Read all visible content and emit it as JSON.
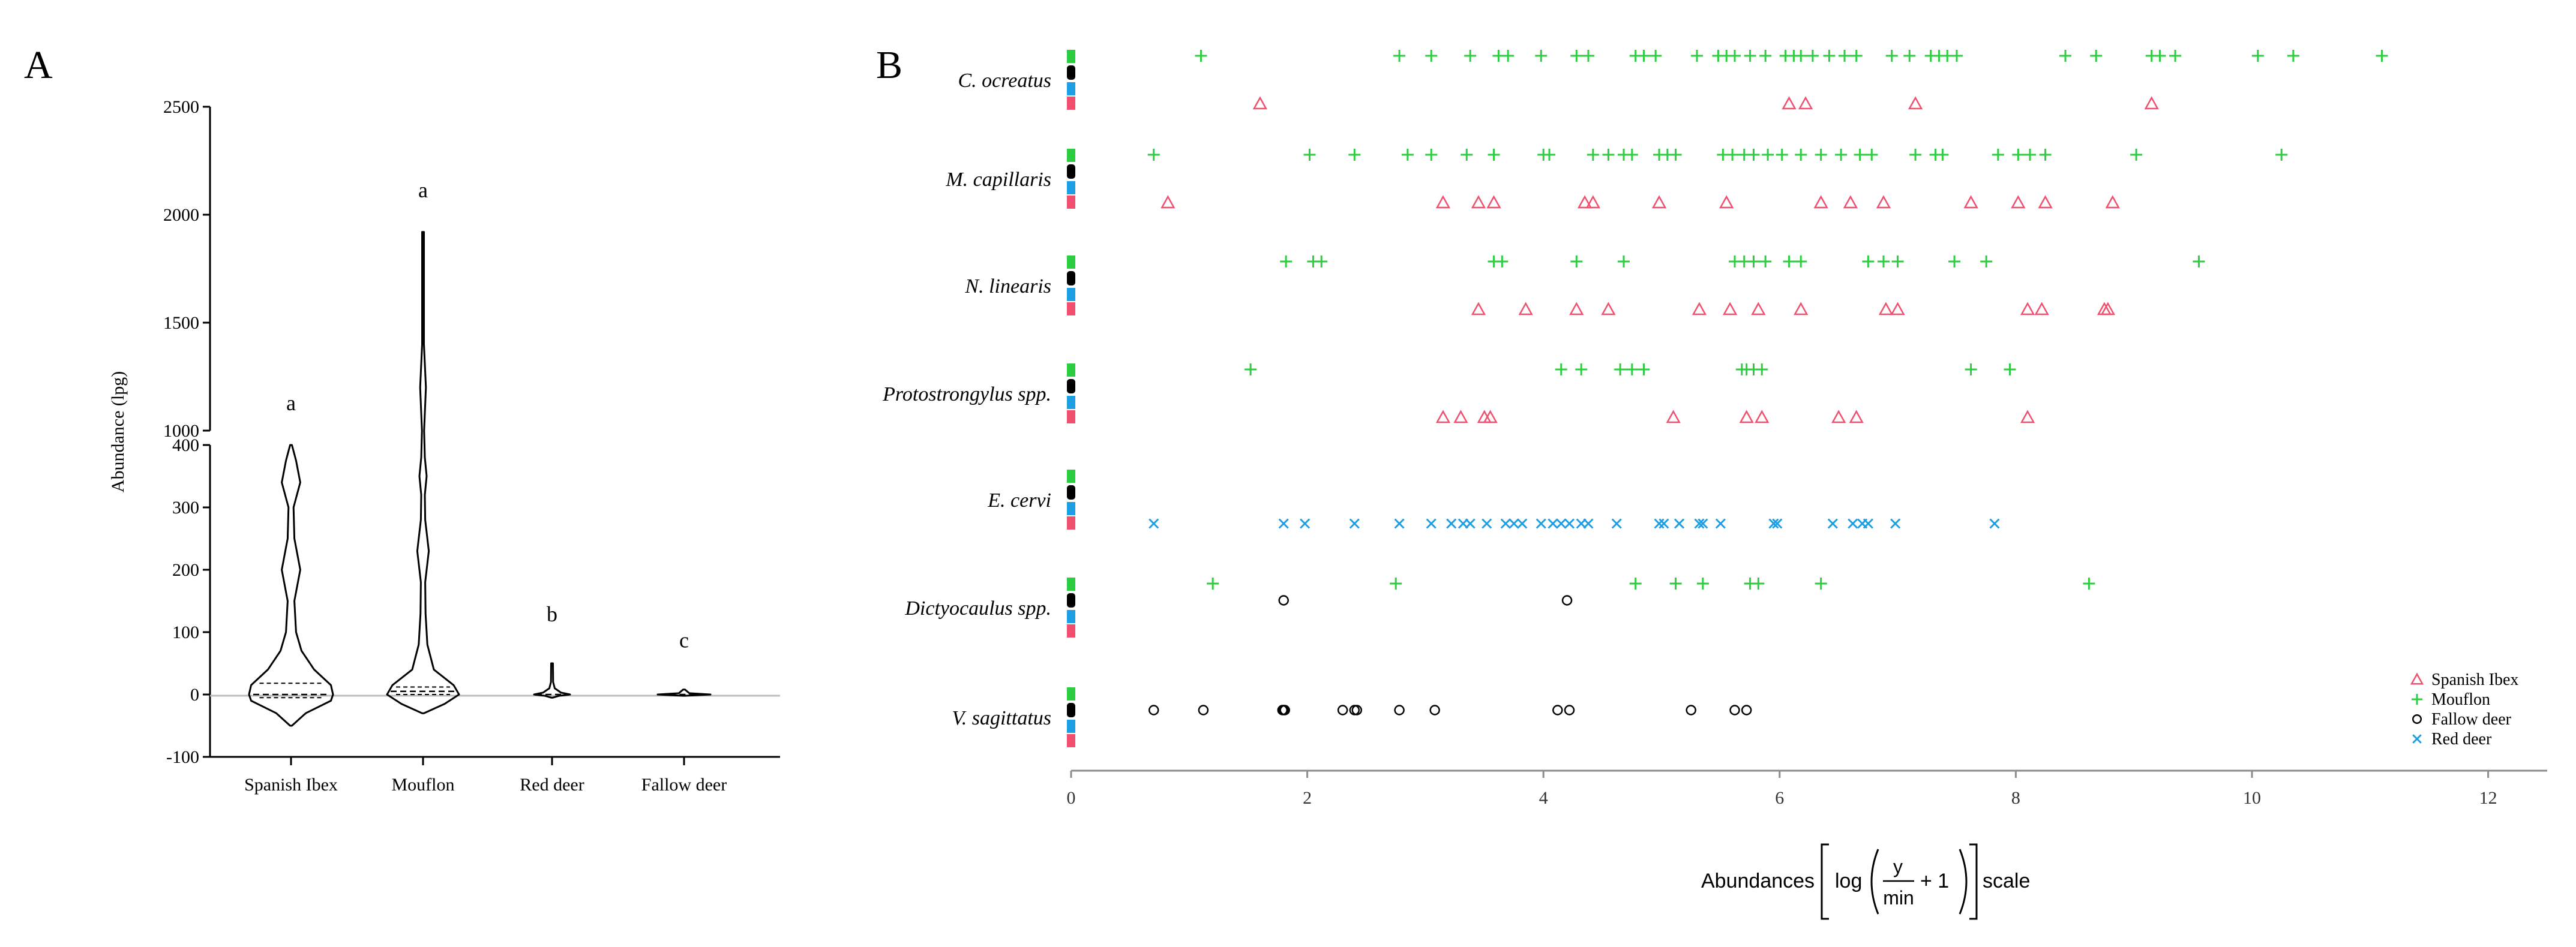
{
  "panel_a_label": "A",
  "panel_b_label": "B",
  "chart_data": [
    {
      "type": "violin",
      "panel": "A",
      "ylabel": "Abundance (lpg)",
      "y_axis": "broken",
      "lower_segment": {
        "ylim": [
          -100,
          400
        ],
        "ticks": [
          -100,
          0,
          100,
          200,
          300,
          400
        ]
      },
      "upper_segment": {
        "ylim": [
          1000,
          2500
        ],
        "ticks": [
          1000,
          1500,
          2000,
          2500
        ]
      },
      "categories": [
        "Spanish Ibex",
        "Mouflon",
        "Red deer",
        "Fallow deer"
      ],
      "significance_letters": [
        "a",
        "a",
        "b",
        "c"
      ],
      "series": [
        {
          "name": "Spanish Ibex",
          "min": -50,
          "max": 400,
          "median": 0,
          "q1": -5,
          "q3": 18,
          "density": [
            [
              -50,
              0.0
            ],
            [
              -30,
              0.35
            ],
            [
              -10,
              0.95
            ],
            [
              0,
              1.0
            ],
            [
              15,
              0.95
            ],
            [
              40,
              0.55
            ],
            [
              70,
              0.25
            ],
            [
              100,
              0.12
            ],
            [
              150,
              0.08
            ],
            [
              200,
              0.22
            ],
            [
              250,
              0.08
            ],
            [
              300,
              0.06
            ],
            [
              340,
              0.22
            ],
            [
              375,
              0.12
            ],
            [
              400,
              0.0
            ]
          ]
        },
        {
          "name": "Mouflon",
          "min": -30,
          "max": 1920,
          "median": 5,
          "q1": 0,
          "q3": 12,
          "density": [
            [
              -30,
              0.0
            ],
            [
              -15,
              0.6
            ],
            [
              0,
              1.0
            ],
            [
              15,
              0.85
            ],
            [
              40,
              0.3
            ],
            [
              80,
              0.12
            ],
            [
              130,
              0.07
            ],
            [
              180,
              0.06
            ],
            [
              230,
              0.16
            ],
            [
              280,
              0.06
            ],
            [
              320,
              0.05
            ],
            [
              350,
              0.1
            ],
            [
              380,
              0.05
            ],
            [
              1000,
              0.03
            ],
            [
              1200,
              0.08
            ],
            [
              1400,
              0.02
            ],
            [
              1920,
              0.0
            ]
          ]
        },
        {
          "name": "Red deer",
          "min": -5,
          "max": 50,
          "median": 0,
          "density": [
            [
              -5,
              0.0
            ],
            [
              -2,
              0.4
            ],
            [
              0,
              1.0
            ],
            [
              3,
              0.5
            ],
            [
              10,
              0.15
            ],
            [
              20,
              0.06
            ],
            [
              50,
              0.0
            ]
          ]
        },
        {
          "name": "Fallow deer",
          "min": -2,
          "max": 8,
          "median": 0,
          "density": [
            [
              -2,
              0.0
            ],
            [
              0,
              1.0
            ],
            [
              2,
              0.2
            ],
            [
              8,
              0.0
            ]
          ]
        }
      ]
    },
    {
      "type": "scatter",
      "panel": "B",
      "xlabel_parts": {
        "prefix": "Abundances",
        "log": "log",
        "numerator": "y",
        "denominator": "min",
        "suffix": "+ 1",
        "scale": "scale"
      },
      "xlim": [
        0,
        12.5
      ],
      "xticks": [
        0,
        2,
        4,
        6,
        8,
        10,
        12
      ],
      "legend_position": "bottom-right",
      "groups": [
        "C. ocreatus",
        "M. capillaris",
        "N.  linearis",
        "Protostrongylus spp.",
        "E. cervi",
        "Dictyocaulus spp.",
        "V. sagittatus"
      ],
      "series": [
        {
          "name": "Spanish Ibex",
          "marker": "triangle",
          "color": "#f0506e",
          "points": {
            "C. ocreatus": [
              1.6,
              6.08,
              6.22,
              7.15,
              9.15
            ],
            "M. capillaris": [
              0.82,
              3.15,
              3.45,
              3.58,
              4.35,
              4.42,
              4.98,
              5.55,
              6.35,
              6.6,
              6.88,
              7.62,
              8.02,
              8.25,
              8.82
            ],
            "N.  linearis": [
              3.45,
              3.85,
              4.28,
              4.55,
              5.32,
              5.58,
              5.82,
              6.18,
              6.9,
              7.0,
              8.1,
              8.22,
              8.75,
              8.78
            ],
            "Protostrongylus spp.": [
              3.15,
              3.3,
              3.5,
              3.55,
              5.1,
              5.72,
              5.85,
              6.5,
              6.65,
              8.1
            ],
            "E. cervi": [],
            "Dictyocaulus spp.": [],
            "V. sagittatus": []
          }
        },
        {
          "name": "Mouflon",
          "marker": "plus",
          "color": "#2ecc40",
          "points": {
            "C. ocreatus": [
              1.1,
              2.78,
              3.05,
              3.38,
              3.62,
              3.7,
              3.98,
              4.28,
              4.38,
              4.78,
              4.85,
              4.95,
              5.3,
              5.48,
              5.55,
              5.62,
              5.75,
              5.88,
              6.05,
              6.12,
              6.18,
              6.28,
              6.42,
              6.55,
              6.65,
              6.95,
              7.1,
              7.28,
              7.35,
              7.42,
              7.5,
              8.42,
              8.68,
              9.15,
              9.22,
              9.35,
              10.05,
              10.35,
              11.1
            ],
            "M. capillaris": [
              0.7,
              2.02,
              2.4,
              2.85,
              3.05,
              3.35,
              3.58,
              4.0,
              4.05,
              4.42,
              4.55,
              4.68,
              4.75,
              4.98,
              5.05,
              5.12,
              5.52,
              5.6,
              5.7,
              5.78,
              5.9,
              6.02,
              6.18,
              6.35,
              6.52,
              6.68,
              6.78,
              7.15,
              7.32,
              7.38,
              7.85,
              8.02,
              8.12,
              8.25,
              9.02,
              10.25
            ],
            "N.  linearis": [
              1.82,
              2.05,
              2.12,
              3.58,
              3.65,
              4.28,
              4.68,
              5.62,
              5.7,
              5.78,
              5.88,
              6.08,
              6.18,
              6.75,
              6.88,
              7.0,
              7.48,
              7.75,
              9.55
            ],
            "Protostrongylus spp.": [
              1.52,
              4.15,
              4.32,
              4.65,
              4.75,
              4.85,
              5.68,
              5.72,
              5.78,
              5.85,
              7.62,
              7.95
            ],
            "E. cervi": [],
            "Dictyocaulus spp.": [
              1.2,
              2.75,
              4.78,
              5.12,
              5.35,
              5.75,
              5.82,
              6.35,
              8.62
            ],
            "V. sagittatus": []
          }
        },
        {
          "name": "Fallow deer",
          "marker": "circle",
          "color": "#000000",
          "points": {
            "C. ocreatus": [],
            "M. capillaris": [],
            "N.  linearis": [],
            "Protostrongylus spp.": [],
            "E. cervi": [],
            "Dictyocaulus spp.": [
              1.8,
              4.2
            ],
            "V. sagittatus": [
              0.7,
              1.12,
              1.79,
              1.8,
              1.81,
              2.3,
              2.4,
              2.42,
              2.78,
              3.08,
              4.12,
              4.22,
              5.25,
              5.62,
              5.72
            ]
          }
        },
        {
          "name": "Red deer",
          "marker": "x",
          "color": "#1e9fe3",
          "points": {
            "C. ocreatus": [],
            "M. capillaris": [],
            "N.  linearis": [],
            "Protostrongylus spp.": [],
            "E. cervi": [
              0.7,
              1.8,
              1.98,
              2.4,
              2.78,
              3.05,
              3.22,
              3.32,
              3.38,
              3.52,
              3.68,
              3.75,
              3.82,
              3.98,
              4.08,
              4.15,
              4.22,
              4.32,
              4.38,
              4.62,
              4.98,
              5.02,
              5.15,
              5.32,
              5.35,
              5.5,
              5.95,
              5.98,
              6.45,
              6.62,
              6.7,
              6.75,
              6.98,
              7.82
            ],
            "Dictyocaulus spp.": [],
            "V. sagittatus": []
          }
        }
      ]
    }
  ]
}
